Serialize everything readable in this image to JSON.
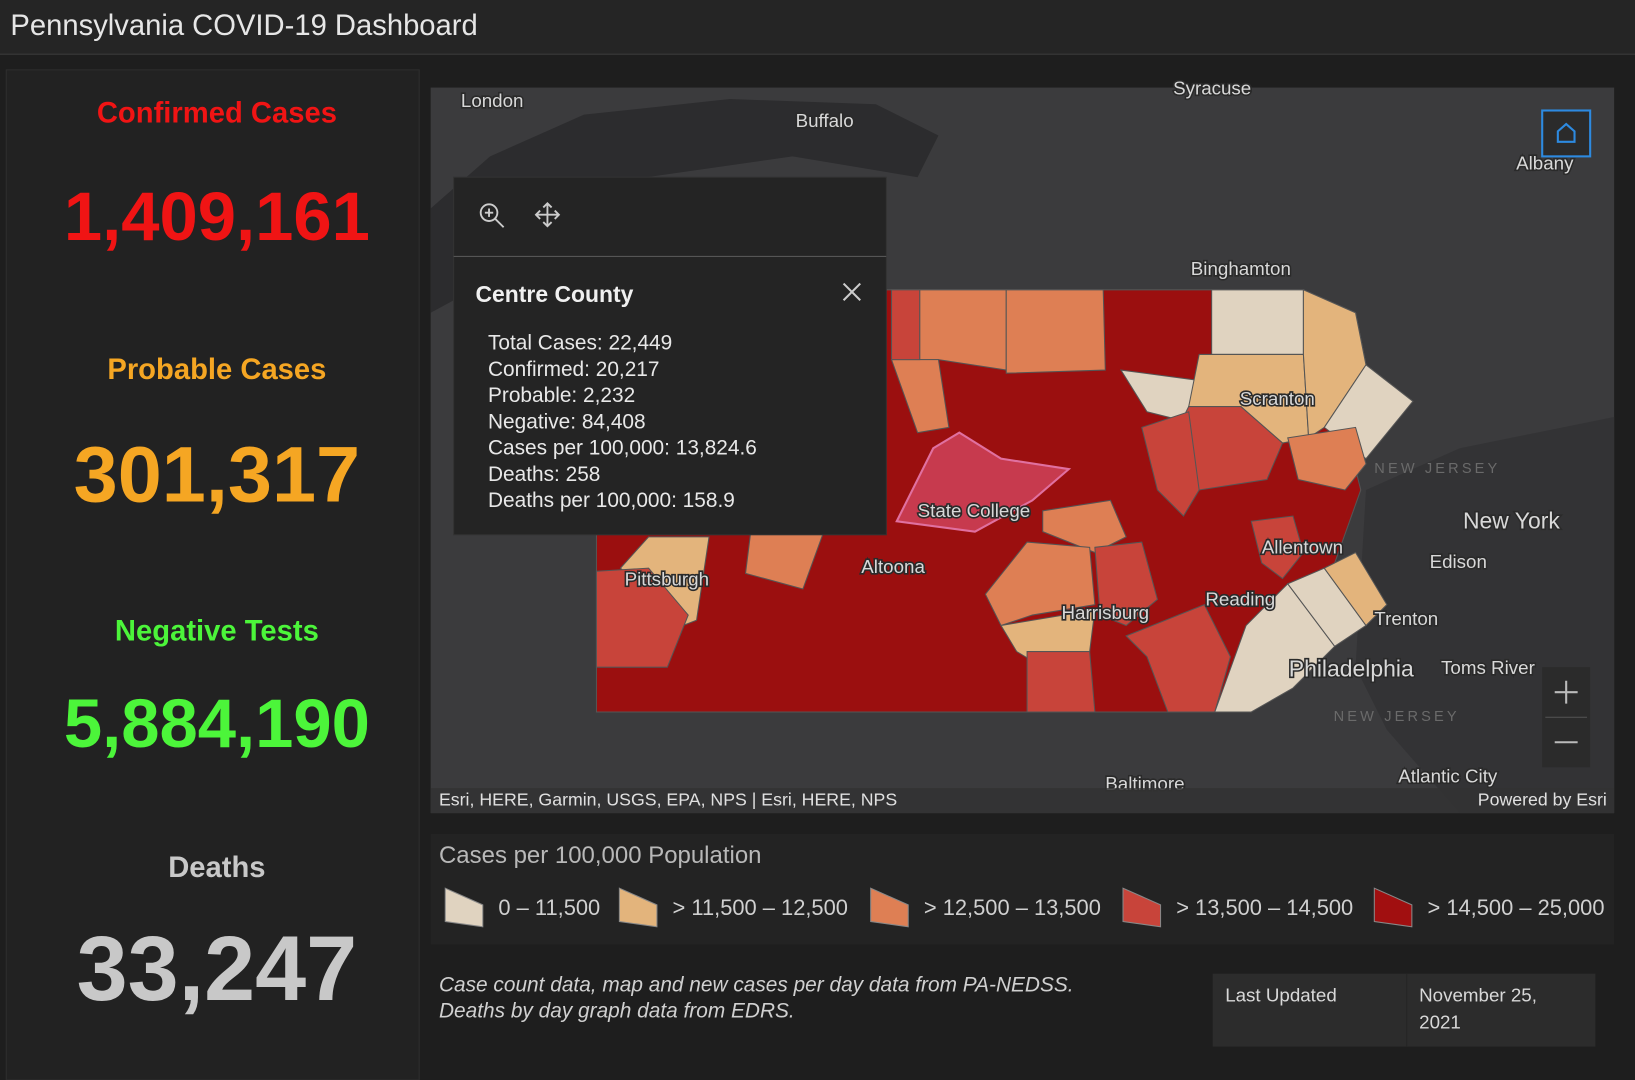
{
  "header": {
    "title": "Pennsylvania COVID-19 Dashboard"
  },
  "stats": [
    {
      "label": "Confirmed Cases",
      "value": "1,409,161"
    },
    {
      "label": "Probable Cases",
      "value": "301,317"
    },
    {
      "label": "Negative Tests",
      "value": "5,884,190"
    },
    {
      "label": "Deaths",
      "value": "33,247"
    }
  ],
  "map": {
    "places": [
      "London",
      "Buffalo",
      "Syracuse",
      "Albany",
      "Binghamton",
      "Scranton",
      "State College",
      "Altoona",
      "Pittsburgh",
      "Harrisburg",
      "Reading",
      "Allentown",
      "New York",
      "Edison",
      "Trenton",
      "Philadelphia",
      "Toms River",
      "Atlantic City",
      "Baltimore",
      "NEW JERSEY",
      "NEW JERSEY"
    ],
    "popup": {
      "title": "Centre County",
      "lines": [
        "Total Cases: 22,449",
        "Confirmed: 20,217",
        "Probable: 2,232",
        "Negative: 84,408",
        "Cases per 100,000: 13,824.6",
        "Deaths: 258",
        "Deaths per 100,000: 158.9"
      ]
    },
    "attribution": "Esri, HERE, Garmin, USGS, EPA, NPS | Esri, HERE, NPS",
    "powered": "Powered by Esri"
  },
  "legend": {
    "title": "Cases per 100,000 Population",
    "items": [
      "0 – 11,500",
      "> 11,500 – 12,500",
      "> 12,500 – 13,500",
      "> 13,500 – 14,500",
      "> 14,500 – 25,000"
    ]
  },
  "footer": {
    "note": [
      "Case count data, map and new cases per day data from PA-NEDSS.",
      "Deaths by day graph data from EDRS."
    ],
    "last_updated": {
      "label": "Last Updated",
      "value": [
        "November 25,",
        "2021"
      ]
    }
  }
}
